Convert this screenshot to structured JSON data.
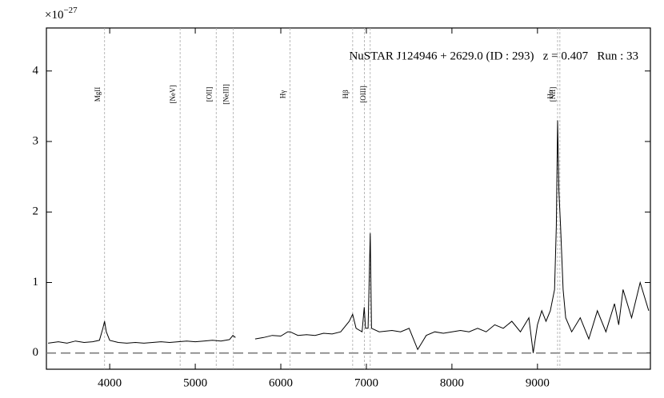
{
  "chart_data": {
    "type": "line",
    "title": "NuSTAR J124946 + 2629.0 (ID : 293)   z = 0.407   Run : 33",
    "y_scale_label": {
      "base": "×10",
      "exponent": "−27"
    },
    "color": "#000000",
    "x": [
      3280,
      3400,
      3500,
      3600,
      3700,
      3800,
      3880,
      3920,
      3940,
      3960,
      4000,
      4100,
      4200,
      4300,
      4400,
      4500,
      4600,
      4700,
      4800,
      4900,
      5000,
      5100,
      5200,
      5300,
      5400,
      5440,
      5470,
      5580,
      5700,
      5800,
      5900,
      6000,
      6080,
      6110,
      6200,
      6300,
      6400,
      6500,
      6600,
      6700,
      6800,
      6840,
      6880,
      6950,
      6975,
      6990,
      7020,
      7045,
      7060,
      7150,
      7300,
      7400,
      7500,
      7600,
      7650,
      7700,
      7800,
      7900,
      8000,
      8100,
      8200,
      8300,
      8400,
      8500,
      8600,
      8700,
      8800,
      8900,
      8950,
      9000,
      9050,
      9100,
      9150,
      9200,
      9220,
      9235,
      9250,
      9270,
      9300,
      9330,
      9400,
      9500,
      9600,
      9700,
      9800,
      9900,
      9950,
      10000,
      10100,
      10200,
      10300
    ],
    "values": [
      0.14,
      0.16,
      0.14,
      0.17,
      0.15,
      0.16,
      0.18,
      0.35,
      0.45,
      0.3,
      0.18,
      0.15,
      0.14,
      0.15,
      0.14,
      0.15,
      0.16,
      0.15,
      0.16,
      0.17,
      0.16,
      0.17,
      0.18,
      0.17,
      0.19,
      0.25,
      0.22,
      null,
      0.2,
      0.22,
      0.25,
      0.24,
      0.3,
      0.3,
      0.25,
      0.26,
      0.25,
      0.28,
      0.27,
      0.3,
      0.45,
      0.55,
      0.35,
      0.3,
      0.65,
      0.35,
      0.35,
      1.7,
      0.35,
      0.3,
      0.32,
      0.3,
      0.35,
      0.05,
      0.15,
      0.25,
      0.3,
      0.28,
      0.3,
      0.32,
      0.3,
      0.35,
      0.3,
      0.4,
      0.35,
      0.45,
      0.3,
      0.5,
      0.0,
      0.4,
      0.6,
      0.45,
      0.6,
      0.9,
      1.8,
      3.3,
      2.3,
      1.8,
      0.9,
      0.5,
      0.3,
      0.5,
      0.2,
      0.6,
      0.3,
      0.7,
      0.4,
      0.9,
      0.5,
      1.0,
      0.6
    ],
    "lines": [
      {
        "x": 3940,
        "label": "MgII"
      },
      {
        "x": 4823,
        "label": "[NeV]"
      },
      {
        "x": 5245,
        "label": "[OII]"
      },
      {
        "x": 5445,
        "label": "[NeIII]"
      },
      {
        "x": 6108,
        "label": "Hγ"
      },
      {
        "x": 6840,
        "label": "Hβ"
      },
      {
        "x": 6977,
        "label": null
      },
      {
        "x": 7045,
        "label": "[OIII]"
      },
      {
        "x": 9235,
        "label": "Hα"
      },
      {
        "x": 9262,
        "label": "[NII]"
      }
    ],
    "xlim": [
      3260,
      10320
    ],
    "ylim": [
      -0.23,
      4.61
    ],
    "xticks": [
      4000,
      5000,
      6000,
      7000,
      8000,
      9000
    ],
    "yticks": [
      0,
      1,
      2,
      3,
      4
    ]
  }
}
